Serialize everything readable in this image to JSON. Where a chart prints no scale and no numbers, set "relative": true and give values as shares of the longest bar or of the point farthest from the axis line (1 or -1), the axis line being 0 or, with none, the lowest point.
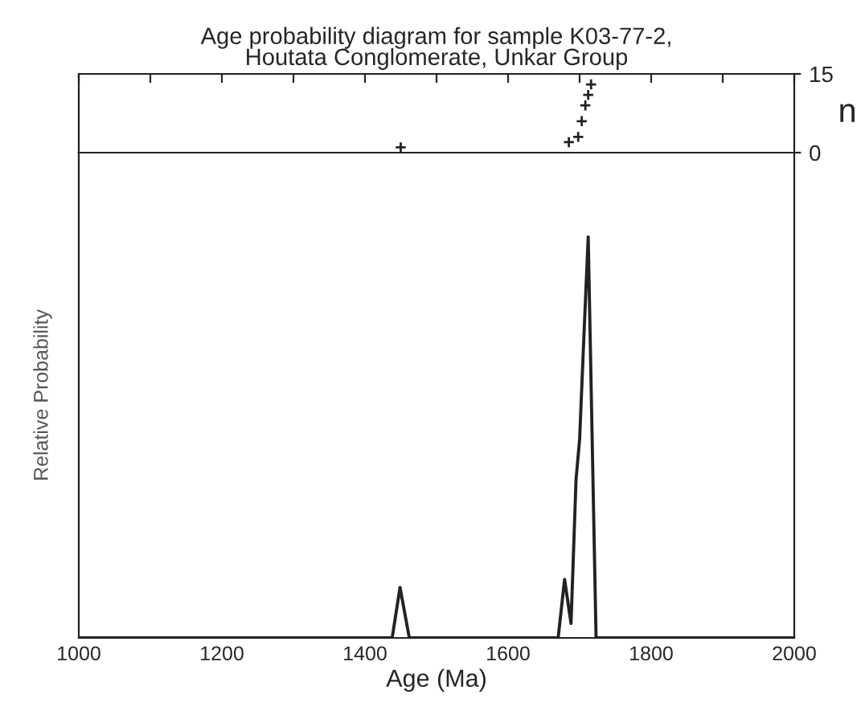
{
  "chart_data": [
    {
      "type": "scatter",
      "title": "Age probability diagram for sample K03-77-2,\nHoutata Conglomerate, Unkar Group",
      "ylabel": "n",
      "series": [
        {
          "color": "#222222",
          "x": [
            1450,
            1685,
            1698,
            1703,
            1708,
            1712,
            1716
          ],
          "values": [
            1,
            2,
            3,
            6,
            9,
            11,
            13
          ]
        }
      ],
      "xlim": [
        1000,
        2000
      ],
      "xticks": [
        {
          "value": 1000,
          "label": null
        },
        {
          "value": 1100,
          "label": null
        },
        {
          "value": 1200,
          "label": null
        },
        {
          "value": 1300,
          "label": null
        },
        {
          "value": 1400,
          "label": null
        },
        {
          "value": 1500,
          "label": null
        },
        {
          "value": 1600,
          "label": null
        },
        {
          "value": 1700,
          "label": null
        },
        {
          "value": 1800,
          "label": null
        },
        {
          "value": 1900,
          "label": null
        },
        {
          "value": 2000,
          "label": null
        }
      ],
      "ylim": [
        0,
        15
      ],
      "yticks": [
        0,
        15
      ],
      "tick_labels": "y",
      "marker": "cross",
      "grid": false
    },
    {
      "type": "line",
      "relative": true,
      "xlabel": "Age (Ma)",
      "ylabel": "Relative Probability",
      "series": [
        {
          "color": "#222222",
          "x": [
            1000,
            1438,
            1449,
            1462,
            1670,
            1679,
            1688,
            1695,
            1700,
            1706,
            1712,
            1723,
            2000
          ],
          "values": [
            0,
            0,
            0.126,
            0,
            0,
            0.146,
            0.036,
            0.395,
            0.495,
            0.752,
            1,
            0,
            0
          ]
        }
      ],
      "xlim": [
        1000,
        2000
      ],
      "xticks": [
        1000,
        1200,
        1400,
        1600,
        1800,
        2000
      ],
      "line_style": "solid",
      "marker": "none",
      "grid": false
    }
  ]
}
